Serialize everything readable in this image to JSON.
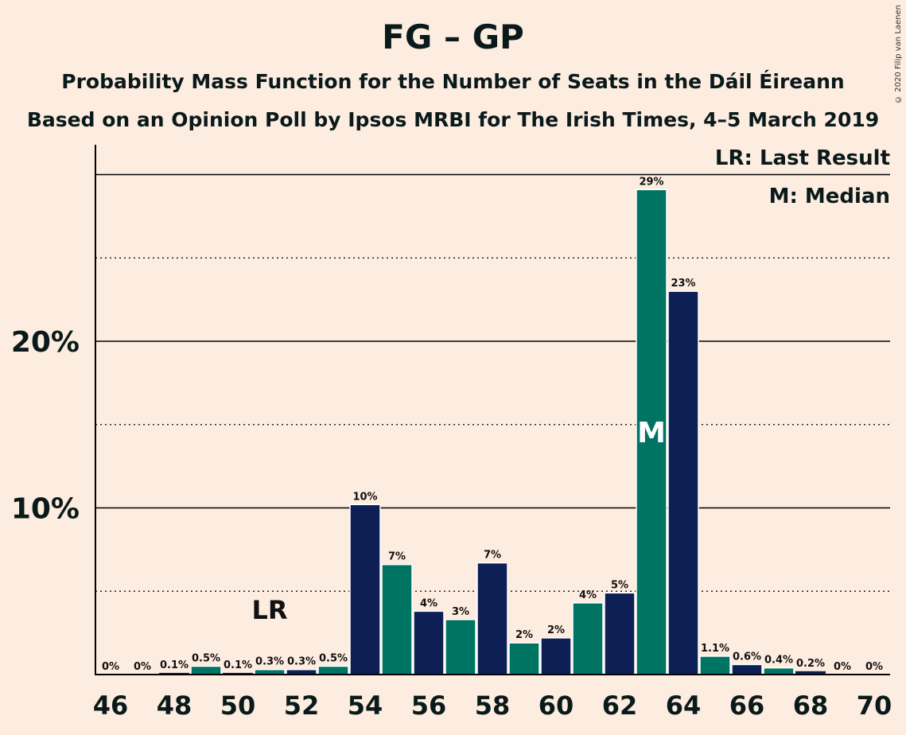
{
  "chart_data": {
    "type": "bar",
    "title": "FG – GP",
    "subtitle": "Probability Mass Function for the Number of Seats in the Dáil Éireann",
    "subtitle2": "Based on an Opinion Poll by Ipsos MRBI for The Irish Times, 4–5 March 2019",
    "credit": "© 2020 Filip van Laenen",
    "legend": [
      "LR: Last Result",
      "M: Median"
    ],
    "legend_placement": "top-right",
    "x": [
      46,
      47,
      48,
      49,
      50,
      51,
      52,
      53,
      54,
      55,
      56,
      57,
      58,
      59,
      60,
      61,
      62,
      63,
      64,
      65,
      66,
      67,
      68,
      69,
      70
    ],
    "values": [
      0,
      0,
      0.1,
      0.5,
      0.1,
      0.3,
      0.3,
      0.5,
      10.2,
      6.6,
      3.8,
      3.3,
      6.7,
      1.9,
      2.2,
      4.3,
      4.9,
      29.1,
      23.0,
      1.1,
      0.6,
      0.4,
      0.2,
      0,
      0
    ],
    "value_labels": [
      "0%",
      "0%",
      "0.1%",
      "0.5%",
      "0.1%",
      "0.3%",
      "0.3%",
      "0.5%",
      "10%",
      "7%",
      "4%",
      "3%",
      "7%",
      "2%",
      "2%",
      "4%",
      "5%",
      "29%",
      "23%",
      "1.1%",
      "0.6%",
      "0.4%",
      "0.2%",
      "0%",
      "0%"
    ],
    "x_tick_labels": [
      "46",
      "48",
      "50",
      "52",
      "54",
      "56",
      "58",
      "60",
      "62",
      "64",
      "66",
      "68",
      "70"
    ],
    "y_tick_labels": [
      "10%",
      "20%"
    ],
    "ylim": [
      0,
      31.6
    ],
    "last_result_seat": 51,
    "last_result_label": "LR",
    "median_seat": 63,
    "median_label": "M",
    "colors": {
      "navy": "#0e1f55",
      "green": "#007462",
      "background": "#fdece0"
    },
    "grid": "dotted at 5% steps, solid at 10% steps"
  }
}
